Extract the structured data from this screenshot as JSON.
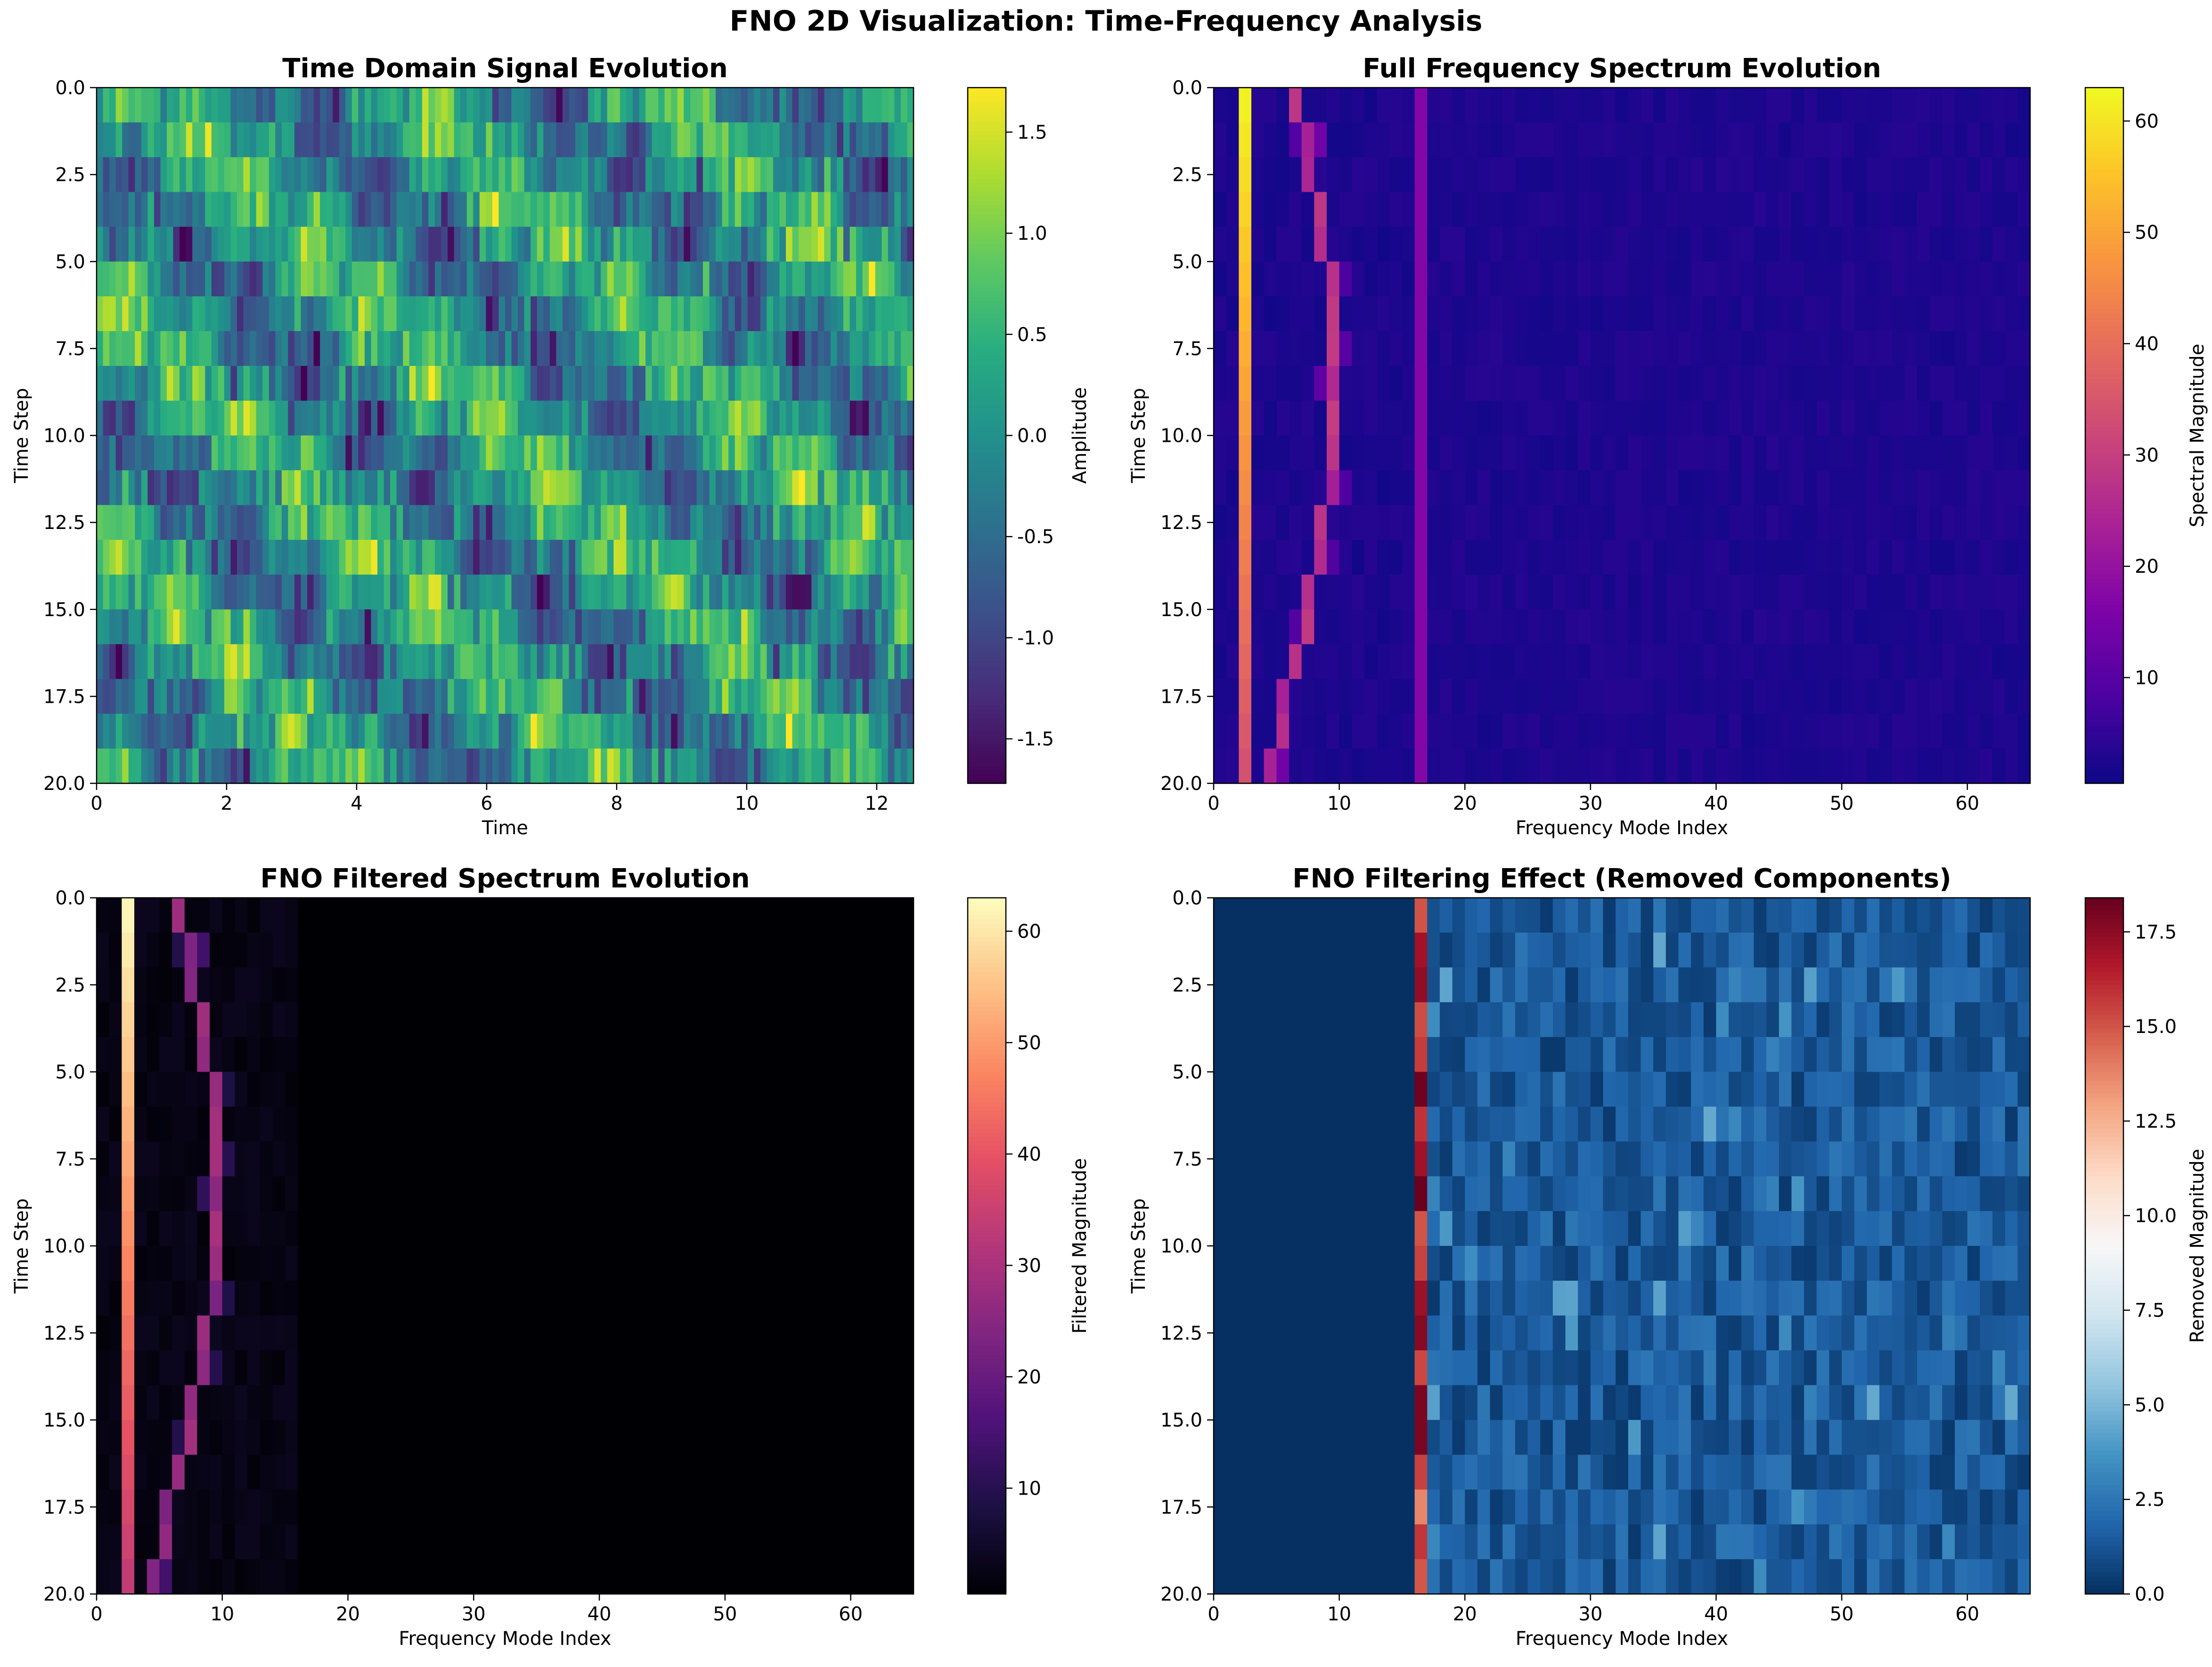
{
  "figure": {
    "suptitle": "FNO 2D Visualization: Time-Frequency Analysis"
  },
  "chart_data": [
    {
      "type": "heatmap",
      "title": "Time Domain Signal Evolution",
      "xlabel": "Time",
      "ylabel": "Time Step",
      "xlim": [
        0,
        12.566
      ],
      "ylim": [
        20,
        0
      ],
      "xticks": [
        0,
        2,
        4,
        6,
        8,
        10,
        12
      ],
      "xtick_labels": [
        "0",
        "2",
        "4",
        "6",
        "8",
        "10",
        "12"
      ],
      "yticks": [
        0,
        2.5,
        5,
        7.5,
        10,
        12.5,
        15,
        17.5,
        20
      ],
      "ytick_labels": [
        "0.0",
        "2.5",
        "5.0",
        "7.5",
        "10.0",
        "12.5",
        "15.0",
        "17.5",
        "20.0"
      ],
      "colormap": "viridis",
      "colorbar_label": "Amplitude",
      "vmin": -1.72,
      "vmax": 1.72,
      "colorbar_ticks": [
        -1.5,
        -1.0,
        -0.5,
        0.0,
        0.5,
        1.0,
        1.5
      ],
      "colorbar_tick_labels": [
        "-1.5",
        "-1.0",
        "-0.5",
        "0.0",
        "0.5",
        "1.0",
        "1.5"
      ],
      "rows": 20,
      "cols": 128,
      "pattern": "traveling wave: bright ridge drifts to the right over time steps with noise",
      "grid": false
    },
    {
      "type": "heatmap",
      "title": "Full Frequency Spectrum Evolution",
      "xlabel": "Frequency Mode Index",
      "ylabel": "Time Step",
      "xlim": [
        0,
        65
      ],
      "ylim": [
        20,
        0
      ],
      "xticks": [
        0,
        10,
        20,
        30,
        40,
        50,
        60
      ],
      "xtick_labels": [
        "0",
        "10",
        "20",
        "30",
        "40",
        "50",
        "60"
      ],
      "yticks": [
        0,
        2.5,
        5,
        7.5,
        10,
        12.5,
        15,
        17.5,
        20
      ],
      "ytick_labels": [
        "0.0",
        "2.5",
        "5.0",
        "7.5",
        "10.0",
        "12.5",
        "15.0",
        "17.5",
        "20.0"
      ],
      "colormap": "plasma",
      "colorbar_label": "Spectral Magnitude",
      "vmin": 0.5,
      "vmax": 63,
      "colorbar_ticks": [
        10,
        20,
        30,
        40,
        50,
        60
      ],
      "colorbar_tick_labels": [
        "10",
        "20",
        "30",
        "40",
        "50",
        "60"
      ],
      "rows": 20,
      "cols": 65,
      "dominant_mode": 2,
      "dominant_magnitude_range": [
        34,
        62
      ],
      "drifting_peak_modes": [
        6,
        7,
        7,
        8,
        8,
        9,
        9,
        9,
        9,
        9,
        9,
        9,
        8,
        8,
        7,
        7,
        6,
        5,
        5,
        4
      ],
      "constant_mode": 16,
      "constant_mode_magnitude": 17,
      "grid": false
    },
    {
      "type": "heatmap",
      "title": "FNO Filtered Spectrum Evolution",
      "xlabel": "Frequency Mode Index",
      "ylabel": "Time Step",
      "xlim": [
        0,
        65
      ],
      "ylim": [
        20,
        0
      ],
      "xticks": [
        0,
        10,
        20,
        30,
        40,
        50,
        60
      ],
      "xtick_labels": [
        "0",
        "10",
        "20",
        "30",
        "40",
        "50",
        "60"
      ],
      "yticks": [
        0,
        2.5,
        5,
        7.5,
        10,
        12.5,
        15,
        17.5,
        20
      ],
      "ytick_labels": [
        "0.0",
        "2.5",
        "5.0",
        "7.5",
        "10.0",
        "12.5",
        "15.0",
        "17.5",
        "20.0"
      ],
      "colormap": "magma",
      "colorbar_label": "Filtered Magnitude",
      "vmin": 0.5,
      "vmax": 63,
      "colorbar_ticks": [
        10,
        20,
        30,
        40,
        50,
        60
      ],
      "colorbar_tick_labels": [
        "10",
        "20",
        "30",
        "40",
        "50",
        "60"
      ],
      "rows": 20,
      "cols": 65,
      "kept_modes": 16,
      "grid": false
    },
    {
      "type": "heatmap",
      "title": "FNO Filtering Effect (Removed Components)",
      "xlabel": "Frequency Mode Index",
      "ylabel": "Time Step",
      "xlim": [
        0,
        65
      ],
      "ylim": [
        20,
        0
      ],
      "xticks": [
        0,
        10,
        20,
        30,
        40,
        50,
        60
      ],
      "xtick_labels": [
        "0",
        "10",
        "20",
        "30",
        "40",
        "50",
        "60"
      ],
      "yticks": [
        0,
        2.5,
        5,
        7.5,
        10,
        12.5,
        15,
        17.5,
        20
      ],
      "ytick_labels": [
        "0.0",
        "2.5",
        "5.0",
        "7.5",
        "10.0",
        "12.5",
        "15.0",
        "17.5",
        "20.0"
      ],
      "colormap": "RdBu_r",
      "colorbar_label": "Removed Magnitude",
      "vmin": 0,
      "vmax": 18.4,
      "colorbar_ticks": [
        0.0,
        2.5,
        5.0,
        7.5,
        10.0,
        12.5,
        15.0,
        17.5
      ],
      "colorbar_tick_labels": [
        "0.0",
        "2.5",
        "5.0",
        "7.5",
        "10.0",
        "12.5",
        "15.0",
        "17.5"
      ],
      "rows": 20,
      "cols": 65,
      "removed_from_mode": 16,
      "removed_constant_mode_magnitude_range": [
        13.5,
        18.4
      ],
      "grid": false
    }
  ]
}
